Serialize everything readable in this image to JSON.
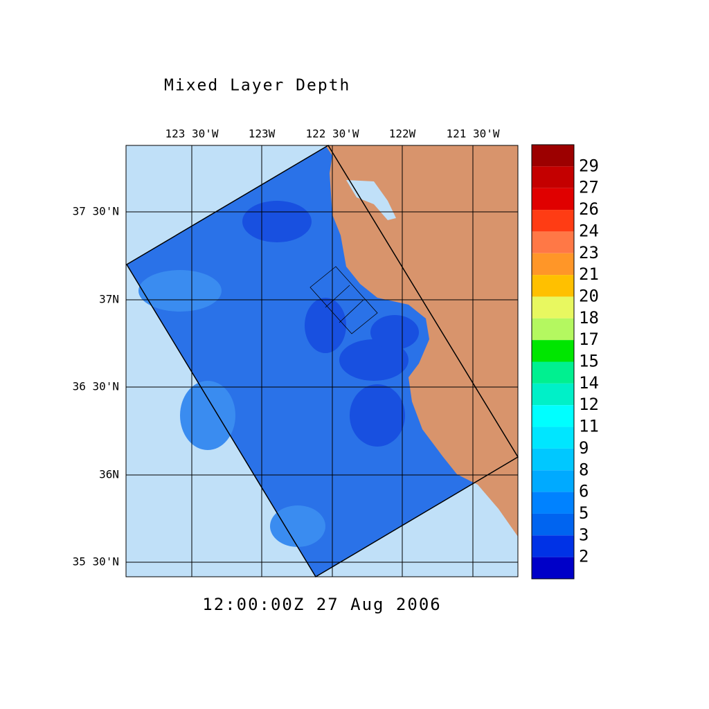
{
  "title": "Mixed Layer Depth",
  "x_ticks": [
    "123 30'W",
    "123W",
    "122 30'W",
    "122W",
    "121 30'W"
  ],
  "y_ticks": [
    "37 30'N",
    "37N",
    "36 30'N",
    "36N",
    "35 30'N"
  ],
  "colorbar": {
    "labels": [
      "29",
      "27",
      "26",
      "24",
      "23",
      "21",
      "20",
      "18",
      "17",
      "15",
      "14",
      "12",
      "11",
      "9",
      "8",
      "6",
      "5",
      "3",
      "2"
    ],
    "colors": [
      "#9c0000",
      "#c40000",
      "#e00000",
      "#ff3c14",
      "#ff7846",
      "#ff9628",
      "#ffc000",
      "#e8f860",
      "#b4f860",
      "#00e600",
      "#00f090",
      "#00f0c8",
      "#00ffff",
      "#00e6ff",
      "#00c8ff",
      "#00aaff",
      "#0082ff",
      "#0064f0",
      "#0032e6",
      "#0000c8"
    ]
  },
  "timestamp": "12:00:00Z  27 Aug 2006"
}
